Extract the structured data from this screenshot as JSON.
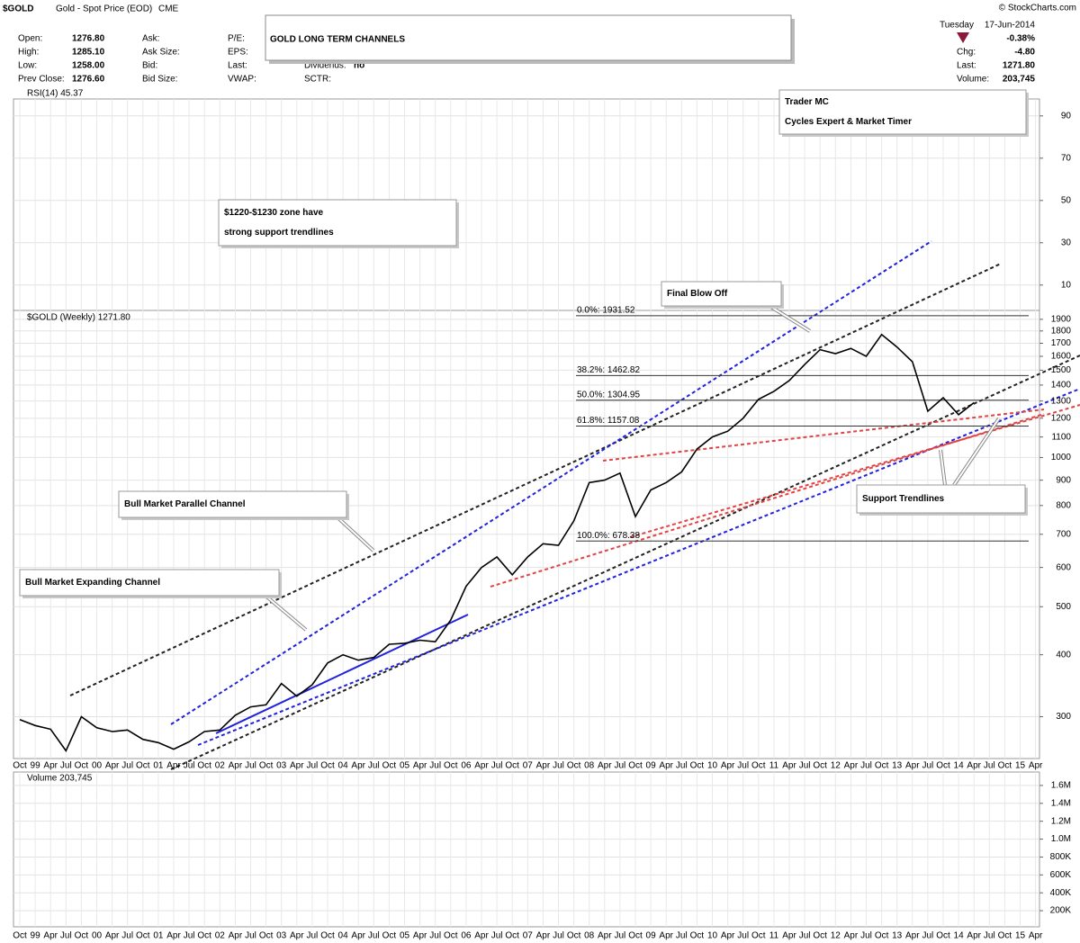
{
  "header": {
    "symbol": "$GOLD",
    "name": "Gold - Spot Price (EOD)",
    "exchange": "CME",
    "copyright": "© StockCharts.com",
    "title": "GOLD LONG TERM CHANNELS",
    "quote": [
      [
        {
          "label": "Open:",
          "value": "1276.80"
        },
        {
          "label": "High:",
          "value": "1285.10"
        },
        {
          "label": "Low:",
          "value": "1258.00"
        },
        {
          "label": "Prev Close:",
          "value": "1276.60"
        }
      ],
      [
        {
          "label": "Ask:"
        },
        {
          "label": "Ask Size:"
        },
        {
          "label": "Bid:"
        },
        {
          "label": "Bid Size:"
        }
      ],
      [
        {
          "label": "P/E:"
        },
        {
          "label": "EPS:"
        },
        {
          "label": "Last:"
        },
        {
          "label": "VWAP:"
        }
      ],
      [
        {
          "label": "Dividends:",
          "value": "no"
        },
        {
          "label": "SCTR:"
        }
      ]
    ],
    "session": {
      "day": "Tuesday",
      "date": "17-Jun-2014",
      "change_pct": "-0.38%",
      "rows": [
        {
          "label": "Chg:",
          "value": "-4.80"
        },
        {
          "label": "Last:",
          "value": "1271.80"
        },
        {
          "label": "Volume:",
          "value": "203,745"
        }
      ]
    }
  },
  "chart_data": [
    {
      "type": "line",
      "title": "RSI(14) 45.37",
      "ylim": [
        -2,
        98
      ],
      "yticks": [
        10,
        30,
        50,
        70,
        90
      ],
      "grid": true
    },
    {
      "type": "line",
      "title": "$GOLD (Weekly) 1271.80",
      "log": true,
      "grid": true,
      "categories": [
        "Oct",
        "99",
        "Apr",
        "Jul",
        "Oct",
        "00",
        "Apr",
        "Jul",
        "Oct",
        "01",
        "Apr",
        "Jul",
        "Oct",
        "02",
        "Apr",
        "Jul",
        "Oct",
        "03",
        "Apr",
        "Jul",
        "Oct",
        "04",
        "Apr",
        "Jul",
        "Oct",
        "05",
        "Apr",
        "Jul",
        "Oct",
        "06",
        "Apr",
        "Jul",
        "Oct",
        "07",
        "Apr",
        "Jul",
        "Oct",
        "08",
        "Apr",
        "Jul",
        "Oct",
        "09",
        "Apr",
        "Jul",
        "Oct",
        "10",
        "Apr",
        "Jul",
        "Oct",
        "11",
        "Apr",
        "Jul",
        "Oct",
        "12",
        "Apr",
        "Jul",
        "Oct",
        "13",
        "Apr",
        "Jul",
        "Oct",
        "14",
        "Apr",
        "Jul",
        "Oct",
        "15",
        "Apr"
      ],
      "series": [
        {
          "name": "$GOLD",
          "color": "#000000",
          "values": [
            296,
            288,
            283,
            256,
            300,
            285,
            280,
            282,
            270,
            266,
            258,
            267,
            280,
            282,
            302,
            314,
            317,
            350,
            330,
            348,
            385,
            400,
            390,
            395,
            420,
            422,
            428,
            425,
            470,
            550,
            600,
            630,
            580,
            630,
            670,
            665,
            745,
            890,
            900,
            930,
            760,
            860,
            890,
            935,
            1040,
            1100,
            1130,
            1200,
            1310,
            1360,
            1430,
            1540,
            1650,
            1620,
            1660,
            1600,
            1770,
            1670,
            1560,
            1240,
            1320,
            1220,
            1290,
            null,
            null,
            null,
            null
          ]
        }
      ],
      "ylim": [
        247,
        1980
      ],
      "yticks": [
        300,
        400,
        500,
        600,
        700,
        800,
        900,
        1000,
        1100,
        1200,
        1300,
        1400,
        1500,
        1600,
        1700,
        1800,
        1900
      ],
      "fib_levels": [
        {
          "label": "0.0%: 1931.52",
          "value": 1931.52
        },
        {
          "label": "38.2%: 1462.82",
          "value": 1462.82
        },
        {
          "label": "50.0%: 1304.95",
          "value": 1304.95
        },
        {
          "label": "61.8%: 1157.08",
          "value": 1157.08
        },
        {
          "label": "100.0%: 678.38",
          "value": 678.38
        }
      ],
      "annotations": [
        {
          "lines": [
            "Trader MC",
            "Cycles Expert & Market Timer"
          ],
          "color": "#1a1acc"
        },
        {
          "lines": [
            "$1220-$1230 zone have",
            "strong support trendlines"
          ],
          "color": "#000000"
        },
        {
          "lines": [
            "Final Blow Off"
          ],
          "color": "#000000"
        },
        {
          "lines": [
            "Bull Market Parallel Channel"
          ],
          "color": "#000000"
        },
        {
          "lines": [
            "Bull Market Expanding Channel"
          ],
          "color": "#1a1acc"
        },
        {
          "lines": [
            "Support Trendlines"
          ],
          "color": "#e00000"
        }
      ]
    },
    {
      "type": "bar",
      "title": "Volume 203,745",
      "grid": true,
      "categories": [
        "Oct",
        "99",
        "Apr",
        "Jul",
        "Oct",
        "00",
        "Apr",
        "Jul",
        "Oct",
        "01",
        "Apr",
        "Jul",
        "Oct",
        "02",
        "Apr",
        "Jul",
        "Oct",
        "03",
        "Apr",
        "Jul",
        "Oct",
        "04",
        "Apr",
        "Jul",
        "Oct",
        "05",
        "Apr",
        "Jul",
        "Oct",
        "06",
        "Apr",
        "Jul",
        "Oct",
        "07",
        "Apr",
        "Jul",
        "Oct",
        "08",
        "Apr",
        "Jul",
        "Oct",
        "09",
        "Apr",
        "Jul",
        "Oct",
        "10",
        "Apr",
        "Jul",
        "Oct",
        "11",
        "Apr",
        "Jul",
        "Oct",
        "12",
        "Apr",
        "Jul",
        "Oct",
        "13",
        "Apr",
        "Jul",
        "Oct",
        "14",
        "Apr",
        "Jul",
        "Oct",
        "15",
        "Apr"
      ],
      "ylim": [
        20000,
        1750000
      ],
      "yticks": [
        {
          "value": 200000,
          "label": "200K"
        },
        {
          "value": 400000,
          "label": "400K"
        },
        {
          "value": 600000,
          "label": "600K"
        },
        {
          "value": 800000,
          "label": "800K"
        },
        {
          "value": 1000000,
          "label": "1.0M"
        },
        {
          "value": 1200000,
          "label": "1.2M"
        },
        {
          "value": 1400000,
          "label": "1.4M"
        },
        {
          "value": 1600000,
          "label": "1.6M"
        }
      ]
    }
  ]
}
